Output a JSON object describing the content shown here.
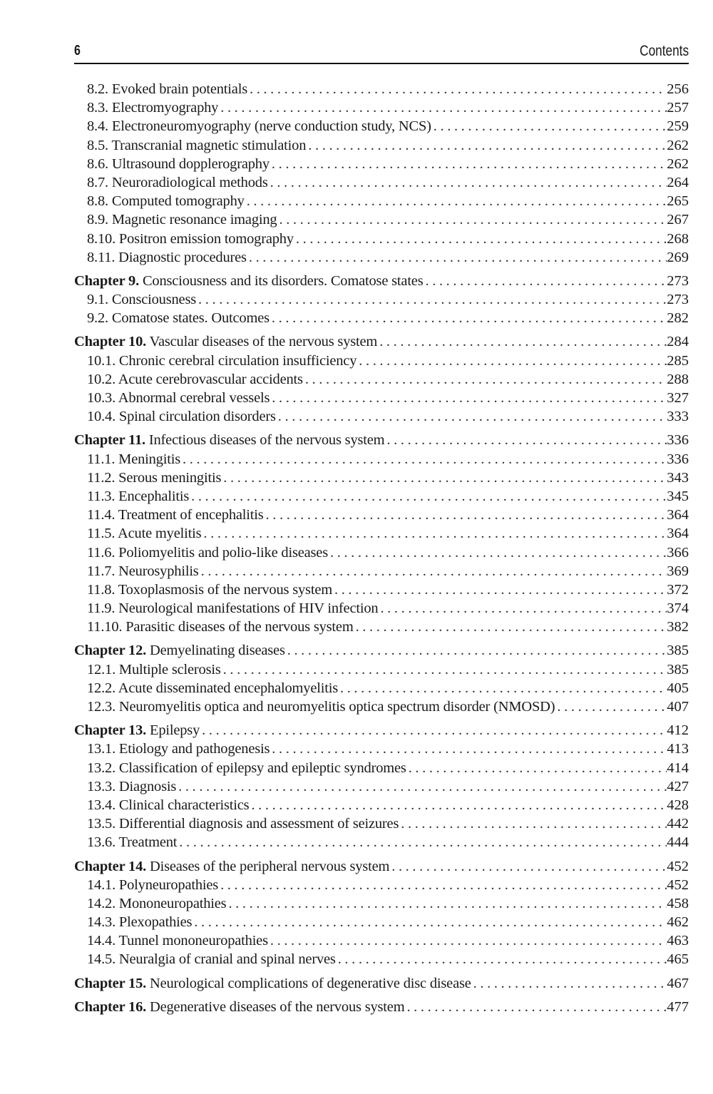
{
  "header": {
    "page_number": "6",
    "running_head": "Contents"
  },
  "entries": [
    {
      "type": "sec",
      "label": "8.2. Evoked brain potentials",
      "page": "256"
    },
    {
      "type": "sec",
      "label": "8.3. Electromyography",
      "page": "257"
    },
    {
      "type": "sec",
      "label": "8.4. Electroneuromyography (nerve conduction study, NCS)",
      "page": "259"
    },
    {
      "type": "sec",
      "label": "8.5. Transcranial magnetic stimulation",
      "page": "262"
    },
    {
      "type": "sec",
      "label": "8.6. Ultrasound dopplerography",
      "page": "262"
    },
    {
      "type": "sec",
      "label": "8.7. Neuroradiological methods",
      "page": "264"
    },
    {
      "type": "sec",
      "label": "8.8. Computed tomography",
      "page": "265"
    },
    {
      "type": "sec",
      "label": "8.9. Magnetic resonance imaging",
      "page": "267"
    },
    {
      "type": "sec",
      "label": "8.10. Positron emission tomography",
      "page": "268"
    },
    {
      "type": "sec",
      "label": "8.11. Diagnostic procedures",
      "page": "269"
    },
    {
      "type": "chap",
      "prefix": "Chapter 9.",
      "label": "Consciousness and its disorders. Comatose states",
      "page": "273"
    },
    {
      "type": "sec",
      "label": "9.1. Consciousness",
      "page": "273"
    },
    {
      "type": "sec",
      "label": "9.2. Comatose states. Outcomes",
      "page": "282"
    },
    {
      "type": "chap",
      "prefix": "Chapter 10.",
      "label": "Vascular diseases  of the nervous system",
      "page": "284"
    },
    {
      "type": "sec",
      "label": "10.1. Chronic cerebral circulation insufficiency",
      "page": "285"
    },
    {
      "type": "sec",
      "label": "10.2. Acute cerebrovascular accidents",
      "page": "288"
    },
    {
      "type": "sec",
      "label": "10.3. Abnormal cerebral vessels",
      "page": "327"
    },
    {
      "type": "sec",
      "label": "10.4. Spinal circulation disorders",
      "page": "333"
    },
    {
      "type": "chap",
      "prefix": "Chapter 11.",
      "label": "Infectious diseases of the nervous system",
      "page": "336"
    },
    {
      "type": "sec",
      "label": "11.1. Meningitis",
      "page": "336"
    },
    {
      "type": "sec",
      "label": "11.2. Serous meningitis",
      "page": "343"
    },
    {
      "type": "sec",
      "label": "11.3. Encephalitis",
      "page": "345"
    },
    {
      "type": "sec",
      "label": "11.4. Treatment of encephalitis",
      "page": "364"
    },
    {
      "type": "sec",
      "label": "11.5. Acute myelitis",
      "page": "364"
    },
    {
      "type": "sec",
      "label": "11.6. Poliomyelitis and polio-like diseases",
      "page": "366"
    },
    {
      "type": "sec",
      "label": "11.7. Neurosyphilis",
      "page": "369"
    },
    {
      "type": "sec",
      "label": "11.8. Toxoplasmosis of the nervous system",
      "page": "372"
    },
    {
      "type": "sec",
      "label": "11.9. Neurological manifestations of HIV infection",
      "page": "374"
    },
    {
      "type": "sec",
      "label": "11.10. Parasitic diseases of the nervous system",
      "page": "382"
    },
    {
      "type": "chap",
      "prefix": "Chapter 12.",
      "label": "Demyelinating diseases",
      "page": "385"
    },
    {
      "type": "sec",
      "label": "12.1. Multiple sclerosis",
      "page": "385"
    },
    {
      "type": "sec",
      "label": "12.2. Acute disseminated encephalomyelitis",
      "page": "405"
    },
    {
      "type": "sec",
      "label": "12.3. Neuromyelitis optica and neuromyelitis optica spectrum disorder (NMOSD)",
      "page": "407"
    },
    {
      "type": "chap",
      "prefix": "Chapter 13.",
      "label": "Epilepsy",
      "page": "412"
    },
    {
      "type": "sec",
      "label": "13.1. Etiology and pathogenesis",
      "page": "413"
    },
    {
      "type": "sec",
      "label": "13.2. Classification of epilepsy and epileptic syndromes",
      "page": "414"
    },
    {
      "type": "sec",
      "label": "13.3. Diagnosis",
      "page": "427"
    },
    {
      "type": "sec",
      "label": "13.4. Clinical characteristics",
      "page": "428"
    },
    {
      "type": "sec",
      "label": "13.5. Differential diagnosis and assessment of seizures",
      "page": "442"
    },
    {
      "type": "sec",
      "label": "13.6. Treatment",
      "page": "444"
    },
    {
      "type": "chap",
      "prefix": "Chapter 14.",
      "label": "Diseases of the peripheral nervous system",
      "page": "452"
    },
    {
      "type": "sec",
      "label": "14.1. Polyneuropathies",
      "page": "452"
    },
    {
      "type": "sec",
      "label": "14.2. Mononeuropathies",
      "page": "458"
    },
    {
      "type": "sec",
      "label": "14.3. Plexopathies",
      "page": "462"
    },
    {
      "type": "sec",
      "label": "14.4. Tunnel mononeuropathies",
      "page": "463"
    },
    {
      "type": "sec",
      "label": "14.5. Neuralgia of cranial and spinal nerves",
      "page": "465"
    },
    {
      "type": "chap",
      "prefix": "Chapter 15.",
      "label": "Neurological complications of degenerative disc disease",
      "page": "467"
    },
    {
      "type": "chap",
      "prefix": "Chapter 16.",
      "label": "Degenerative diseases of the nervous system",
      "page": "477"
    }
  ]
}
